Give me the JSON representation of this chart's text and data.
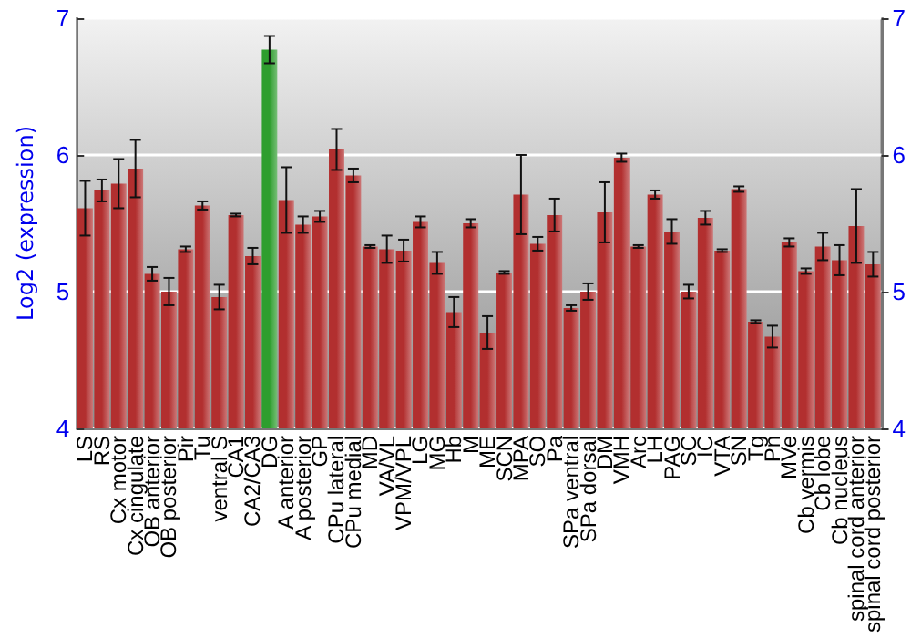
{
  "chart_data": {
    "type": "bar",
    "ylabel": "Log2 (expression)",
    "categories": [
      "LS",
      "RS",
      "Cx motor",
      "Cx cingulate",
      "OB anterior",
      "OB posterior",
      "Pir",
      "Tu",
      "ventral S",
      "CA1",
      "CA2/CA3",
      "DG",
      "A anterior",
      "A posterior",
      "GP",
      "CPu lateral",
      "CPu medial",
      "MD",
      "VA/VL",
      "VPM/VPL",
      "LG",
      "MG",
      "Hb",
      "M",
      "ME",
      "SCN",
      "MPA",
      "SO",
      "Pa",
      "SPa ventral",
      "SPa dorsal",
      "DM",
      "VMH",
      "Arc",
      "LH",
      "PAG",
      "SC",
      "IC",
      "VTA",
      "SN",
      "Tg",
      "Pn",
      "MVe",
      "Cb vermis",
      "Cb lobe",
      "Cb nucleus",
      "spinal cord anterior",
      "spinal cord posterior"
    ],
    "values": [
      5.61,
      5.74,
      5.79,
      5.9,
      5.13,
      5.0,
      5.31,
      5.63,
      4.96,
      5.56,
      5.26,
      6.77,
      5.67,
      5.49,
      5.55,
      6.04,
      5.85,
      5.33,
      5.31,
      5.3,
      5.51,
      5.21,
      4.85,
      5.5,
      4.7,
      5.14,
      5.71,
      5.35,
      5.56,
      4.88,
      5.0,
      5.58,
      5.98,
      5.33,
      5.71,
      5.44,
      5.0,
      5.54,
      5.3,
      5.75,
      4.78,
      4.67,
      5.36,
      5.15,
      5.33,
      5.23,
      5.48,
      5.2
    ],
    "errors": [
      0.2,
      0.08,
      0.18,
      0.21,
      0.05,
      0.1,
      0.02,
      0.03,
      0.09,
      0.01,
      0.06,
      0.1,
      0.24,
      0.06,
      0.04,
      0.15,
      0.05,
      0.01,
      0.1,
      0.08,
      0.04,
      0.08,
      0.11,
      0.03,
      0.12,
      0.01,
      0.29,
      0.05,
      0.12,
      0.02,
      0.06,
      0.22,
      0.03,
      0.01,
      0.03,
      0.09,
      0.05,
      0.05,
      0.01,
      0.02,
      0.01,
      0.08,
      0.03,
      0.02,
      0.1,
      0.11,
      0.27,
      0.09
    ],
    "colors": [
      "#b22f2f",
      "#b22f2f",
      "#b22f2f",
      "#b22f2f",
      "#b22f2f",
      "#b22f2f",
      "#b22f2f",
      "#b22f2f",
      "#b22f2f",
      "#b22f2f",
      "#b22f2f",
      "#2e9e2e",
      "#b22f2f",
      "#b22f2f",
      "#b22f2f",
      "#b22f2f",
      "#b22f2f",
      "#b22f2f",
      "#b22f2f",
      "#b22f2f",
      "#b22f2f",
      "#b22f2f",
      "#b22f2f",
      "#b22f2f",
      "#b22f2f",
      "#b22f2f",
      "#b22f2f",
      "#b22f2f",
      "#b22f2f",
      "#b22f2f",
      "#b22f2f",
      "#b22f2f",
      "#b22f2f",
      "#b22f2f",
      "#b22f2f",
      "#b22f2f",
      "#b22f2f",
      "#b22f2f",
      "#b22f2f",
      "#b22f2f",
      "#b22f2f",
      "#b22f2f",
      "#b22f2f",
      "#b22f2f",
      "#b22f2f",
      "#b22f2f",
      "#b22f2f",
      "#b22f2f"
    ],
    "ylim": [
      4,
      7
    ],
    "yticks": [
      4,
      5,
      6,
      7
    ],
    "y2lim": [
      4,
      7
    ],
    "y2ticks": [
      4,
      5,
      6,
      7
    ],
    "grid": "y"
  }
}
